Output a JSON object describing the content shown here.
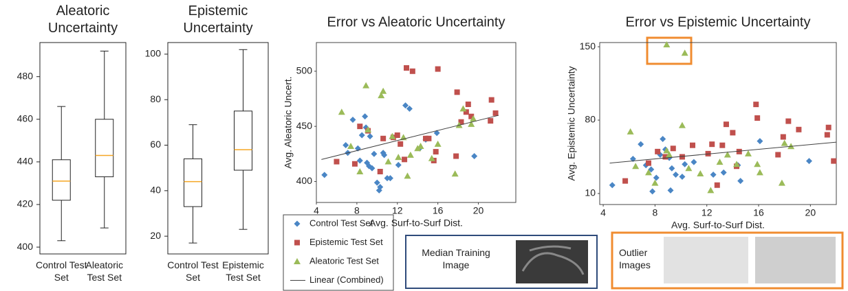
{
  "chart_data": [
    {
      "type": "box",
      "title": "Aleatoric Uncertainty",
      "categories": [
        "Control Test Set",
        "Aleatoric Test Set"
      ],
      "boxes": [
        {
          "min": 403,
          "q1": 422,
          "median": 431,
          "q3": 441,
          "max": 466
        },
        {
          "min": 409,
          "q1": 433,
          "median": 443,
          "q3": 460,
          "max": 492
        }
      ],
      "ylim": [
        396.8,
        496
      ],
      "yticks": [
        400,
        420,
        440,
        460,
        480
      ],
      "color": "#222222",
      "median_color": "#f5a623"
    },
    {
      "type": "box",
      "title": "Epistemic Uncertainty",
      "categories": [
        "Control Test Set",
        "Epistemic Test Set"
      ],
      "boxes": [
        {
          "min": 17,
          "q1": 33,
          "median": 44,
          "q3": 54,
          "max": 69
        },
        {
          "min": 23,
          "q1": 49,
          "median": 58,
          "q3": 75,
          "max": 102
        }
      ],
      "ylim": [
        12.2,
        105.1
      ],
      "yticks": [
        20,
        40,
        60,
        80,
        100
      ],
      "color": "#222222",
      "median_color": "#f5a623"
    },
    {
      "type": "scatter",
      "title": "Error vs Aleatoric Uncertainty",
      "x_label": "Avg. Surf-to-Surf Dist.",
      "y_label": "Avg. Aleatoric Uncert.",
      "xlim": [
        4,
        23.7
      ],
      "xticks": [
        4,
        8,
        12,
        16,
        20
      ],
      "ylim": [
        381,
        526
      ],
      "yticks": [
        400,
        450,
        500
      ],
      "series": [
        {
          "name": "Control Test Set",
          "color": "#4a86c5",
          "marker": "diamond",
          "x": [
            4.8,
            6.9,
            7.1,
            7.6,
            8.1,
            8.5,
            8.8,
            8.9,
            9,
            9.2,
            9.3,
            9.5,
            9.7,
            10,
            10.2,
            10.3,
            10.6,
            11,
            11.3,
            12.8,
            13.2,
            14.2,
            14.8,
            15.9,
            19.6,
            8.3,
            10.7,
            12.1
          ],
          "y": [
            406,
            433,
            426,
            456,
            430,
            442,
            459,
            449,
            417,
            414,
            441,
            412,
            425,
            399,
            392,
            395,
            426,
            403,
            403,
            469,
            466,
            430,
            438,
            444,
            423,
            419,
            424,
            415
          ]
        },
        {
          "name": "Epistemic Test Set",
          "color": "#c0504d",
          "marker": "square",
          "x": [
            6,
            7.8,
            8.3,
            9.1,
            10.3,
            10.6,
            11.6,
            12,
            12.3,
            12.9,
            13.5,
            14.8,
            15.1,
            15.8,
            16,
            17.8,
            17.9,
            18.3,
            18.8,
            19,
            19.3,
            21.3,
            21.2,
            21.7,
            15.6,
            12.7
          ],
          "y": [
            418,
            416,
            450,
            446,
            409,
            439,
            440,
            442,
            434,
            503,
            500,
            439,
            439,
            427,
            502,
            423,
            481,
            454,
            463,
            470,
            459,
            474,
            455,
            462,
            419,
            420
          ]
        },
        {
          "name": "Aleatoric Test Set",
          "color": "#9bbb59",
          "marker": "triangle",
          "x": [
            6.5,
            7.4,
            8.3,
            8.9,
            9.1,
            10.4,
            10.6,
            11.1,
            11.5,
            12.1,
            12.6,
            13,
            13.3,
            14,
            14.3,
            15.4,
            16,
            17.7,
            18.1,
            18.5,
            19.3,
            19.5
          ],
          "y": [
            463,
            432,
            409,
            487,
            447,
            478,
            482,
            418,
            441,
            422,
            440,
            405,
            424,
            430,
            432,
            421,
            434,
            407,
            451,
            466,
            452,
            457
          ]
        }
      ],
      "trendline": {
        "name": "Linear (Combined)",
        "color": "#404040",
        "x": [
          4.5,
          22
        ],
        "y": [
          420,
          460
        ]
      }
    },
    {
      "type": "scatter",
      "title": "Error vs Epistemic Uncertainty",
      "x_label": "Avg. Surf-to-Surf Dist.",
      "y_label": "Avg. Epistemic Uncertainty",
      "xlim": [
        3.73,
        22
      ],
      "xticks": [
        4,
        8,
        12,
        16,
        20
      ],
      "ylim": [
        -0.5,
        154
      ],
      "yticks": [
        10,
        80,
        150
      ],
      "series": [
        {
          "color": "#4a86c5",
          "marker": "diamond",
          "x": [
            4.7,
            6.3,
            6.9,
            7.3,
            7.7,
            8.1,
            8.4,
            8.6,
            8.8,
            9.1,
            9.3,
            9.6,
            10.1,
            10.3,
            11,
            12.5,
            13.3,
            14.4,
            14.6,
            16.1,
            19.9,
            7.8,
            9.2
          ],
          "y": [
            18,
            43,
            57,
            37,
            33,
            25,
            47,
            62,
            52,
            44,
            34,
            28,
            26,
            38,
            40,
            28,
            30,
            37,
            22,
            60,
            41,
            12,
            13
          ]
        },
        {
          "color": "#c0504d",
          "marker": "square",
          "x": [
            5.7,
            7.5,
            8.2,
            8.8,
            9.4,
            10.1,
            10.9,
            12.1,
            12.4,
            12.8,
            13.2,
            13.5,
            14,
            14.5,
            15.8,
            15.9,
            17.5,
            17.9,
            18.3,
            19.1,
            21.4,
            21.3,
            21.8,
            14.3
          ],
          "y": [
            22,
            39,
            50,
            45,
            53,
            45,
            56,
            48,
            57,
            18,
            56,
            76,
            68,
            50,
            95,
            82,
            47,
            64,
            79,
            71,
            73,
            66,
            41,
            36
          ]
        },
        {
          "color": "#9bbb59",
          "marker": "triangle",
          "x": [
            6.1,
            6.5,
            7.5,
            8,
            8.9,
            9.1,
            10.1,
            10.6,
            11.5,
            12.3,
            13,
            13.6,
            14.3,
            15.2,
            15.9,
            16.1,
            17.8,
            18,
            18.5,
            8.9,
            10.3
          ],
          "y": [
            69,
            36,
            30,
            20,
            51,
            47,
            75,
            34,
            29,
            13,
            40,
            47,
            38,
            48,
            38,
            30,
            20,
            58,
            55,
            152,
            144
          ]
        }
      ],
      "trendline": {
        "color": "#404040",
        "x": [
          4.5,
          22
        ],
        "y": [
          39,
          59
        ]
      }
    }
  ],
  "median_panel": {
    "label": "Median Training Image"
  },
  "outlier_panel": {
    "label": "Outlier Images"
  }
}
